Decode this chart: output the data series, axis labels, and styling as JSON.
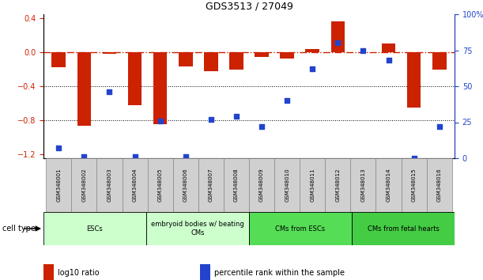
{
  "title": "GDS3513 / 27049",
  "samples": [
    "GSM348001",
    "GSM348002",
    "GSM348003",
    "GSM348004",
    "GSM348005",
    "GSM348006",
    "GSM348007",
    "GSM348008",
    "GSM348009",
    "GSM348010",
    "GSM348011",
    "GSM348012",
    "GSM348013",
    "GSM348014",
    "GSM348015",
    "GSM348016"
  ],
  "log10_ratio": [
    -0.18,
    -0.87,
    -0.02,
    -0.62,
    -0.85,
    -0.17,
    -0.22,
    -0.2,
    -0.05,
    -0.07,
    0.04,
    0.37,
    0.0,
    0.1,
    -0.65,
    -0.2
  ],
  "percentile_rank": [
    7,
    1,
    46,
    1,
    26,
    1,
    27,
    29,
    22,
    40,
    62,
    80,
    75,
    68,
    0,
    22
  ],
  "cell_type_groups": [
    {
      "label": "ESCs",
      "start": 0,
      "end": 3,
      "color": "#ccffcc"
    },
    {
      "label": "embryoid bodies w/ beating\nCMs",
      "start": 4,
      "end": 7,
      "color": "#ccffcc"
    },
    {
      "label": "CMs from ESCs",
      "start": 8,
      "end": 11,
      "color": "#55dd55"
    },
    {
      "label": "CMs from fetal hearts",
      "start": 12,
      "end": 15,
      "color": "#44cc44"
    }
  ],
  "bar_color": "#cc2200",
  "dot_color": "#2244cc",
  "ylim_left": [
    -1.25,
    0.45
  ],
  "ylim_right": [
    0,
    100
  ],
  "yticks_left": [
    -1.2,
    -0.8,
    -0.4,
    0.0,
    0.4
  ],
  "yticks_right": [
    0,
    25,
    50,
    75,
    100
  ],
  "ytick_labels_right": [
    "0",
    "25",
    "50",
    "75",
    "100%"
  ],
  "hline_y": 0.0,
  "dotted_lines": [
    -0.4,
    -0.8
  ],
  "legend_items": [
    {
      "color": "#cc2200",
      "label": "log10 ratio"
    },
    {
      "color": "#2244cc",
      "label": "percentile rank within the sample"
    }
  ],
  "sample_box_color": "#d0d0d0",
  "sample_box_edge": "#888888"
}
